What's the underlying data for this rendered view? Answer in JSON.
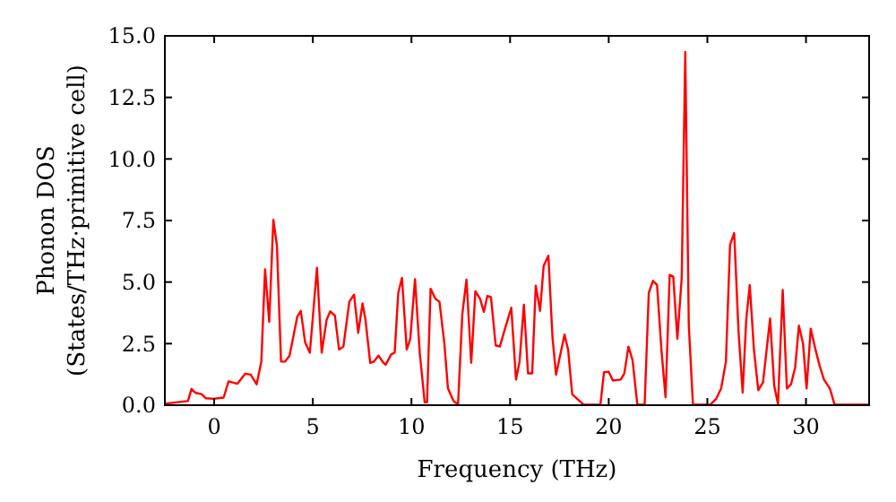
{
  "chart_data": {
    "type": "line",
    "xlabel": "Frequency (THz)",
    "ylabel": "Phonon DOS\n(States/THz·primitive cell)",
    "xlim": [
      -2.5,
      33.2
    ],
    "ylim": [
      0,
      15
    ],
    "xticks": [
      0,
      5,
      10,
      15,
      20,
      25,
      30
    ],
    "yticks": [
      {
        "value": 0,
        "label": "0.0"
      },
      {
        "value": 2.5,
        "label": "2.5"
      },
      {
        "value": 5,
        "label": "5.0"
      },
      {
        "value": 7.5,
        "label": "7.5"
      },
      {
        "value": 10,
        "label": "10.0"
      },
      {
        "value": 12.5,
        "label": "12.5"
      },
      {
        "value": 15,
        "label": "15.0"
      }
    ],
    "grid": false,
    "marker": "none",
    "line_style": "solid",
    "series": [
      {
        "color": "#ff0000",
        "x": [
          -2.45,
          -1.33,
          -1.15,
          -0.94,
          -0.64,
          -0.42,
          -0.03,
          0.48,
          0.73,
          1.18,
          1.58,
          1.85,
          2.15,
          2.39,
          2.58,
          2.79,
          3.0,
          3.18,
          3.39,
          3.6,
          3.82,
          4.21,
          4.39,
          4.61,
          4.85,
          5.21,
          5.45,
          5.7,
          5.88,
          6.12,
          6.33,
          6.55,
          6.85,
          7.09,
          7.3,
          7.52,
          7.67,
          7.91,
          8.09,
          8.33,
          8.58,
          8.7,
          8.97,
          9.15,
          9.33,
          9.52,
          9.76,
          9.94,
          10.18,
          10.42,
          10.67,
          10.79,
          10.97,
          11.21,
          11.42,
          11.67,
          11.85,
          12.12,
          12.36,
          12.58,
          12.79,
          13.03,
          13.24,
          13.48,
          13.67,
          13.85,
          14.03,
          14.27,
          14.48,
          14.7,
          15.06,
          15.3,
          15.48,
          15.7,
          15.91,
          16.12,
          16.3,
          16.52,
          16.7,
          16.94,
          17.15,
          17.33,
          17.76,
          17.94,
          18.15,
          18.73,
          19.58,
          19.76,
          20.0,
          20.21,
          20.61,
          20.79,
          21.0,
          21.21,
          21.45,
          21.82,
          22.03,
          22.24,
          22.45,
          22.67,
          22.88,
          23.09,
          23.27,
          23.48,
          23.7,
          23.88,
          24.06,
          24.27,
          25.15,
          25.45,
          25.7,
          25.94,
          26.15,
          26.36,
          26.58,
          26.79,
          26.97,
          27.15,
          27.36,
          27.58,
          27.82,
          28.18,
          28.39,
          28.58,
          28.82,
          29.03,
          29.24,
          29.45,
          29.64,
          29.85,
          30.03,
          30.24,
          30.48,
          30.7,
          30.91,
          31.21,
          31.45,
          33.18
        ],
        "values": [
          0.07,
          0.17,
          0.66,
          0.5,
          0.45,
          0.28,
          0.26,
          0.31,
          0.97,
          0.87,
          1.28,
          1.24,
          0.85,
          1.77,
          5.52,
          3.38,
          7.53,
          6.48,
          1.77,
          1.77,
          2.01,
          3.59,
          3.83,
          2.55,
          2.13,
          5.58,
          2.13,
          3.47,
          3.81,
          3.64,
          2.26,
          2.38,
          4.2,
          4.49,
          2.94,
          4.13,
          3.47,
          1.72,
          1.77,
          2.01,
          1.72,
          1.65,
          2.06,
          2.13,
          4.56,
          5.17,
          2.26,
          2.69,
          5.12,
          2.13,
          0.12,
          0.12,
          4.73,
          4.32,
          4.2,
          2.5,
          0.68,
          0.19,
          0.02,
          3.71,
          5.1,
          1.72,
          4.63,
          4.32,
          3.79,
          4.44,
          4.39,
          2.43,
          2.38,
          2.99,
          3.96,
          1.04,
          1.77,
          4.08,
          1.29,
          1.29,
          4.85,
          3.83,
          5.65,
          6.07,
          2.75,
          1.24,
          2.87,
          2.26,
          0.44,
          0.02,
          0.02,
          1.34,
          1.36,
          1.0,
          1.04,
          1.29,
          2.38,
          1.82,
          0.02,
          0.02,
          4.56,
          5.05,
          4.88,
          2.26,
          0.32,
          5.29,
          5.22,
          2.7,
          5.17,
          14.35,
          3.23,
          0.02,
          0.02,
          0.26,
          0.68,
          1.77,
          6.51,
          6.99,
          2.99,
          0.51,
          3.47,
          4.88,
          2.26,
          0.61,
          0.92,
          3.52,
          0.78,
          0.05,
          4.68,
          0.68,
          0.85,
          1.53,
          3.23,
          2.5,
          0.68,
          3.11,
          2.26,
          1.58,
          1.04,
          0.68,
          0.02,
          0.02
        ]
      }
    ]
  }
}
